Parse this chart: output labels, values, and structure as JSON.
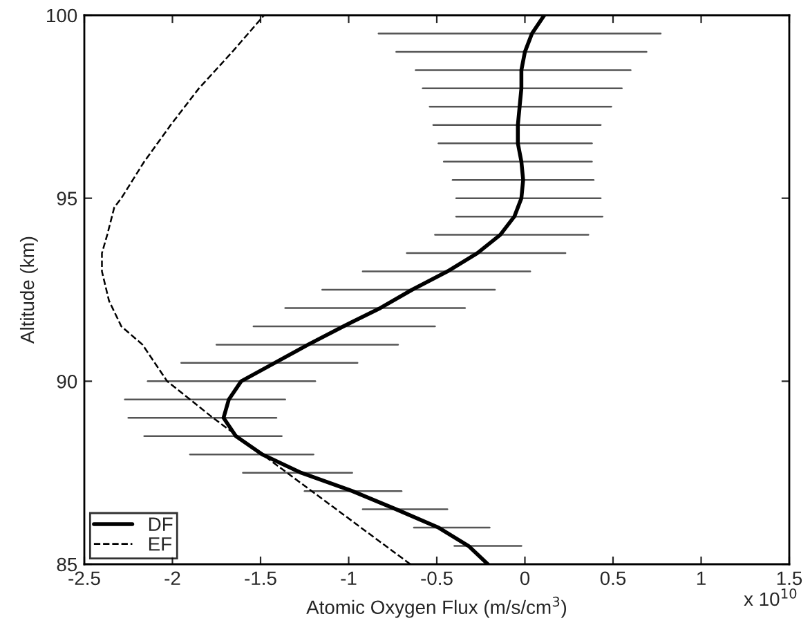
{
  "chart_data": {
    "type": "line",
    "xlabel": "Atomic Oxygen Flux (m/s/cm$^{3}$)",
    "ylabel": "Altitude (km)",
    "xlim": [
      -2.5,
      1.5
    ],
    "xticks": [
      -2.5,
      -2,
      -1.5,
      -1,
      -0.5,
      0,
      0.5,
      1,
      1.5
    ],
    "ylim": [
      85,
      100
    ],
    "yticks": [
      85,
      90,
      95,
      100
    ],
    "annotations": [
      "x 10$^{10}$"
    ],
    "legend": "bottom left",
    "grid": false,
    "marker": "none",
    "series": [
      {
        "name": "DF",
        "color": "#000000",
        "line_style": "solid",
        "x": [
          -0.21,
          -0.32,
          -0.49,
          -0.73,
          -0.98,
          -1.27,
          -1.49,
          -1.64,
          -1.71,
          -1.68,
          -1.61,
          -1.42,
          -1.23,
          -1.03,
          -0.82,
          -0.64,
          -0.44,
          -0.27,
          -0.14,
          -0.06,
          -0.02,
          -0.01,
          -0.02,
          -0.04,
          -0.04,
          -0.03,
          -0.02,
          -0.02,
          0.0,
          0.04,
          0.11
        ],
        "values": [
          85,
          85.5,
          86,
          86.5,
          87,
          87.5,
          88,
          88.5,
          89,
          89.5,
          90,
          90.5,
          91,
          91.5,
          92,
          92.5,
          93,
          93.5,
          94,
          94.5,
          95,
          95.5,
          96,
          96.5,
          97,
          97.5,
          98,
          98.5,
          99,
          99.5,
          100
        ],
        "xerrors": [
          null,
          [
            -0.4,
            -0.02
          ],
          [
            -0.63,
            -0.2
          ],
          [
            -0.92,
            -0.44
          ],
          [
            -1.25,
            -0.7
          ],
          [
            -1.6,
            -0.98
          ],
          [
            -1.9,
            -1.2
          ],
          [
            -2.16,
            -1.38
          ],
          [
            -2.25,
            -1.41
          ],
          [
            -2.27,
            -1.36
          ],
          [
            -2.14,
            -1.19
          ],
          [
            -1.95,
            -0.95
          ],
          [
            -1.75,
            -0.72
          ],
          [
            -1.54,
            -0.51
          ],
          [
            -1.36,
            -0.34
          ],
          [
            -1.15,
            -0.17
          ],
          [
            -0.92,
            0.03
          ],
          [
            -0.67,
            0.23
          ],
          [
            -0.51,
            0.36
          ],
          [
            -0.39,
            0.44
          ],
          [
            -0.39,
            0.43
          ],
          [
            -0.41,
            0.39
          ],
          [
            -0.46,
            0.38
          ],
          [
            -0.49,
            0.38
          ],
          [
            -0.52,
            0.43
          ],
          [
            -0.54,
            0.49
          ],
          [
            -0.58,
            0.55
          ],
          [
            -0.62,
            0.6
          ],
          [
            -0.73,
            0.69
          ],
          [
            -0.83,
            0.77
          ],
          null
        ]
      },
      {
        "name": "EF",
        "color": "#000000",
        "line_style": "dashed",
        "x": [
          -0.65,
          -0.93,
          -1.21,
          -1.49,
          -1.77,
          -1.9,
          -2.03,
          -2.17,
          -2.29,
          -2.36,
          -2.4,
          -2.4,
          -2.37,
          -2.33,
          -2.29,
          -2.16,
          -2.01,
          -1.85,
          -1.66,
          -1.57,
          -1.48
        ],
        "values": [
          85,
          86,
          87,
          88,
          89,
          89.5,
          90,
          91,
          91.5,
          92.2,
          93,
          93.5,
          94,
          94.75,
          95,
          96,
          97,
          98,
          99,
          99.5,
          100
        ]
      }
    ]
  }
}
